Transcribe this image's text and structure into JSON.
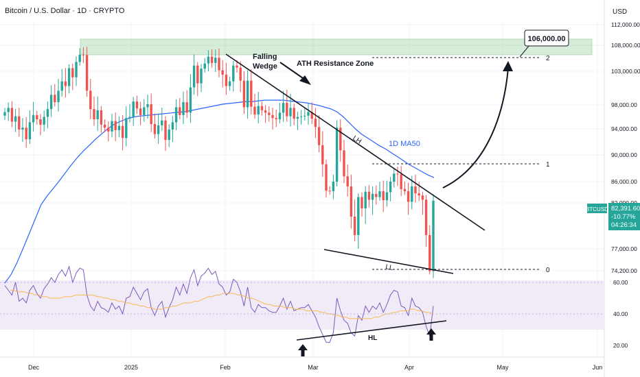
{
  "header": {
    "title": "Bitcoin / U.S. Dollar · 1D · CRYPTO",
    "currency": "USD"
  },
  "colors": {
    "up": "#26a69a",
    "down": "#ef5350",
    "ma": "#2962ff",
    "rsi": "#7e57c2",
    "rsi_ma": "#f7b955",
    "zone": "#4caf50",
    "rsi_band": "#ede7f6"
  },
  "chart_data": [
    {
      "type": "candlestick",
      "ylim": [
        69000,
        113000
      ],
      "yticks": [
        "112,000.00",
        "108,000.00",
        "103,000.00",
        "98,000.00",
        "94,000.00",
        "90,000.00",
        "86,000.00",
        "82,000.00",
        "77,000.00",
        "74,200.00"
      ],
      "xticks": [
        "Dec",
        "2025",
        "Feb",
        "Mar",
        "Apr",
        "May",
        "Jun"
      ],
      "annotations": {
        "wedge": "Falling\nWedge",
        "ath": "ATH Resistance Zone",
        "lh": "LH",
        "ll": "LL",
        "ma_label": "1D MA50",
        "target": "106,000.00",
        "levels": [
          "2",
          "1",
          "0"
        ],
        "symbol_tag": "BTCUSD",
        "price_tag": "82,391.60",
        "change_tag": "-10.77%",
        "timer_tag": "04:26:34"
      },
      "series": [
        {
          "name": "BTCUSD",
          "values": [
            96800,
            97500,
            95200,
            96100,
            93900,
            94200,
            92400,
            95100,
            96300,
            95600,
            94700,
            96000,
            97300,
            99500,
            98400,
            100100,
            101500,
            100800,
            103600,
            102100,
            104800,
            106200,
            106100,
            100100,
            97300,
            95600,
            97100,
            94700,
            94200,
            93600,
            95300,
            93800,
            94500,
            92600,
            95800,
            96000,
            98500,
            97400,
            96300,
            97600,
            98100,
            94800,
            93200,
            94600,
            95400,
            92300,
            93900,
            95100,
            97600,
            96300,
            98400,
            96700,
            100600,
            104100,
            101200,
            103500,
            104500,
            105800,
            104600,
            105600,
            103200,
            102500,
            100800,
            101500,
            104100,
            103700,
            101600,
            97600,
            101600,
            97700,
            96400,
            97800,
            97100,
            96700,
            96300,
            95800,
            95600,
            96700,
            98300,
            96100,
            97500,
            95700,
            96000,
            96100,
            96200,
            96800,
            95700,
            94300,
            91500,
            88600,
            84300,
            84200,
            86000,
            94200,
            90700,
            86800,
            85100,
            80500,
            78500,
            83100,
            81400,
            84100,
            82600,
            83700,
            83100,
            84200,
            82500,
            84000,
            86000,
            87200,
            87100,
            84600,
            84200,
            82200,
            85100,
            83800,
            83400,
            82600,
            78500,
            74100,
            82400
          ]
        },
        {
          "name": "MA50",
          "values": [
            71500,
            73300,
            75200,
            77000,
            78600,
            80200,
            81800,
            83300,
            84700,
            86100,
            87300,
            88500,
            89600,
            90600,
            91500,
            92400,
            93200,
            94000,
            94700,
            95200,
            95600,
            95900,
            96100,
            96200,
            96300,
            96400,
            96500,
            96600,
            96700,
            96800,
            96900,
            97100,
            97300,
            97500,
            97700,
            97900,
            98100,
            98200,
            98300,
            98400,
            98500,
            98500,
            98600,
            98700,
            98700,
            98700,
            98700,
            98600,
            98500,
            98400,
            98300,
            98100,
            97900,
            97600,
            97300,
            96800,
            96000,
            95000,
            94000,
            93200,
            92600,
            92000,
            91400,
            90900,
            90300,
            89700,
            89100,
            88500,
            88000,
            87500,
            87000,
            86600
          ]
        },
        {
          "name": "RSI",
          "values": [
            58,
            55,
            52,
            60,
            48,
            50,
            47,
            55,
            58,
            53,
            50,
            56,
            59,
            63,
            60,
            65,
            68,
            64,
            70,
            60,
            66,
            69,
            68,
            52,
            45,
            42,
            48,
            44,
            43,
            41,
            47,
            43,
            45,
            40,
            50,
            51,
            57,
            53,
            49,
            54,
            56,
            44,
            39,
            45,
            48,
            38,
            44,
            49,
            57,
            52,
            59,
            53,
            63,
            68,
            58,
            64,
            66,
            69,
            65,
            67,
            59,
            57,
            52,
            54,
            62,
            60,
            54,
            45,
            57,
            44,
            41,
            46,
            44,
            44,
            42,
            41,
            41,
            45,
            50,
            43,
            48,
            42,
            43,
            44,
            44,
            46,
            42,
            38,
            32,
            27,
            22,
            22,
            28,
            50,
            42,
            36,
            34,
            28,
            26,
            39,
            36,
            45,
            41,
            45,
            43,
            47,
            41,
            46,
            52,
            55,
            54,
            45,
            44,
            39,
            50,
            45,
            44,
            41,
            32,
            26,
            45
          ]
        },
        {
          "name": "RSI MA",
          "values": [
            55,
            55,
            54,
            54,
            54,
            53,
            53,
            52,
            52,
            51,
            51,
            50,
            50,
            50,
            50,
            51,
            51,
            51,
            52,
            52,
            52,
            52,
            52,
            52,
            51,
            51,
            50,
            50,
            49,
            49,
            48,
            48,
            47,
            47,
            46,
            46,
            45,
            45,
            44,
            44,
            43,
            43,
            43,
            44,
            44,
            45,
            45,
            46,
            47,
            47,
            47,
            48,
            48,
            49,
            50,
            51,
            51,
            52,
            52,
            53,
            53,
            53,
            53,
            52,
            52,
            51,
            50,
            50,
            49,
            48,
            47,
            46,
            46,
            45,
            45,
            45,
            44,
            44,
            44,
            43,
            43,
            43,
            42,
            42,
            42,
            42,
            41,
            41,
            40,
            40,
            39,
            39,
            38,
            38,
            37,
            37,
            37,
            37,
            37,
            37,
            37,
            38,
            38,
            39,
            40,
            40,
            41,
            41,
            42,
            42,
            42,
            43,
            43,
            42,
            42,
            41,
            41,
            40
          ]
        }
      ]
    },
    {
      "type": "line",
      "title": "RSI",
      "ylim": [
        15,
        68
      ],
      "yticks": [
        "60.00",
        "40.00",
        "20.00"
      ],
      "annotations": {
        "hl": "HL"
      }
    }
  ]
}
